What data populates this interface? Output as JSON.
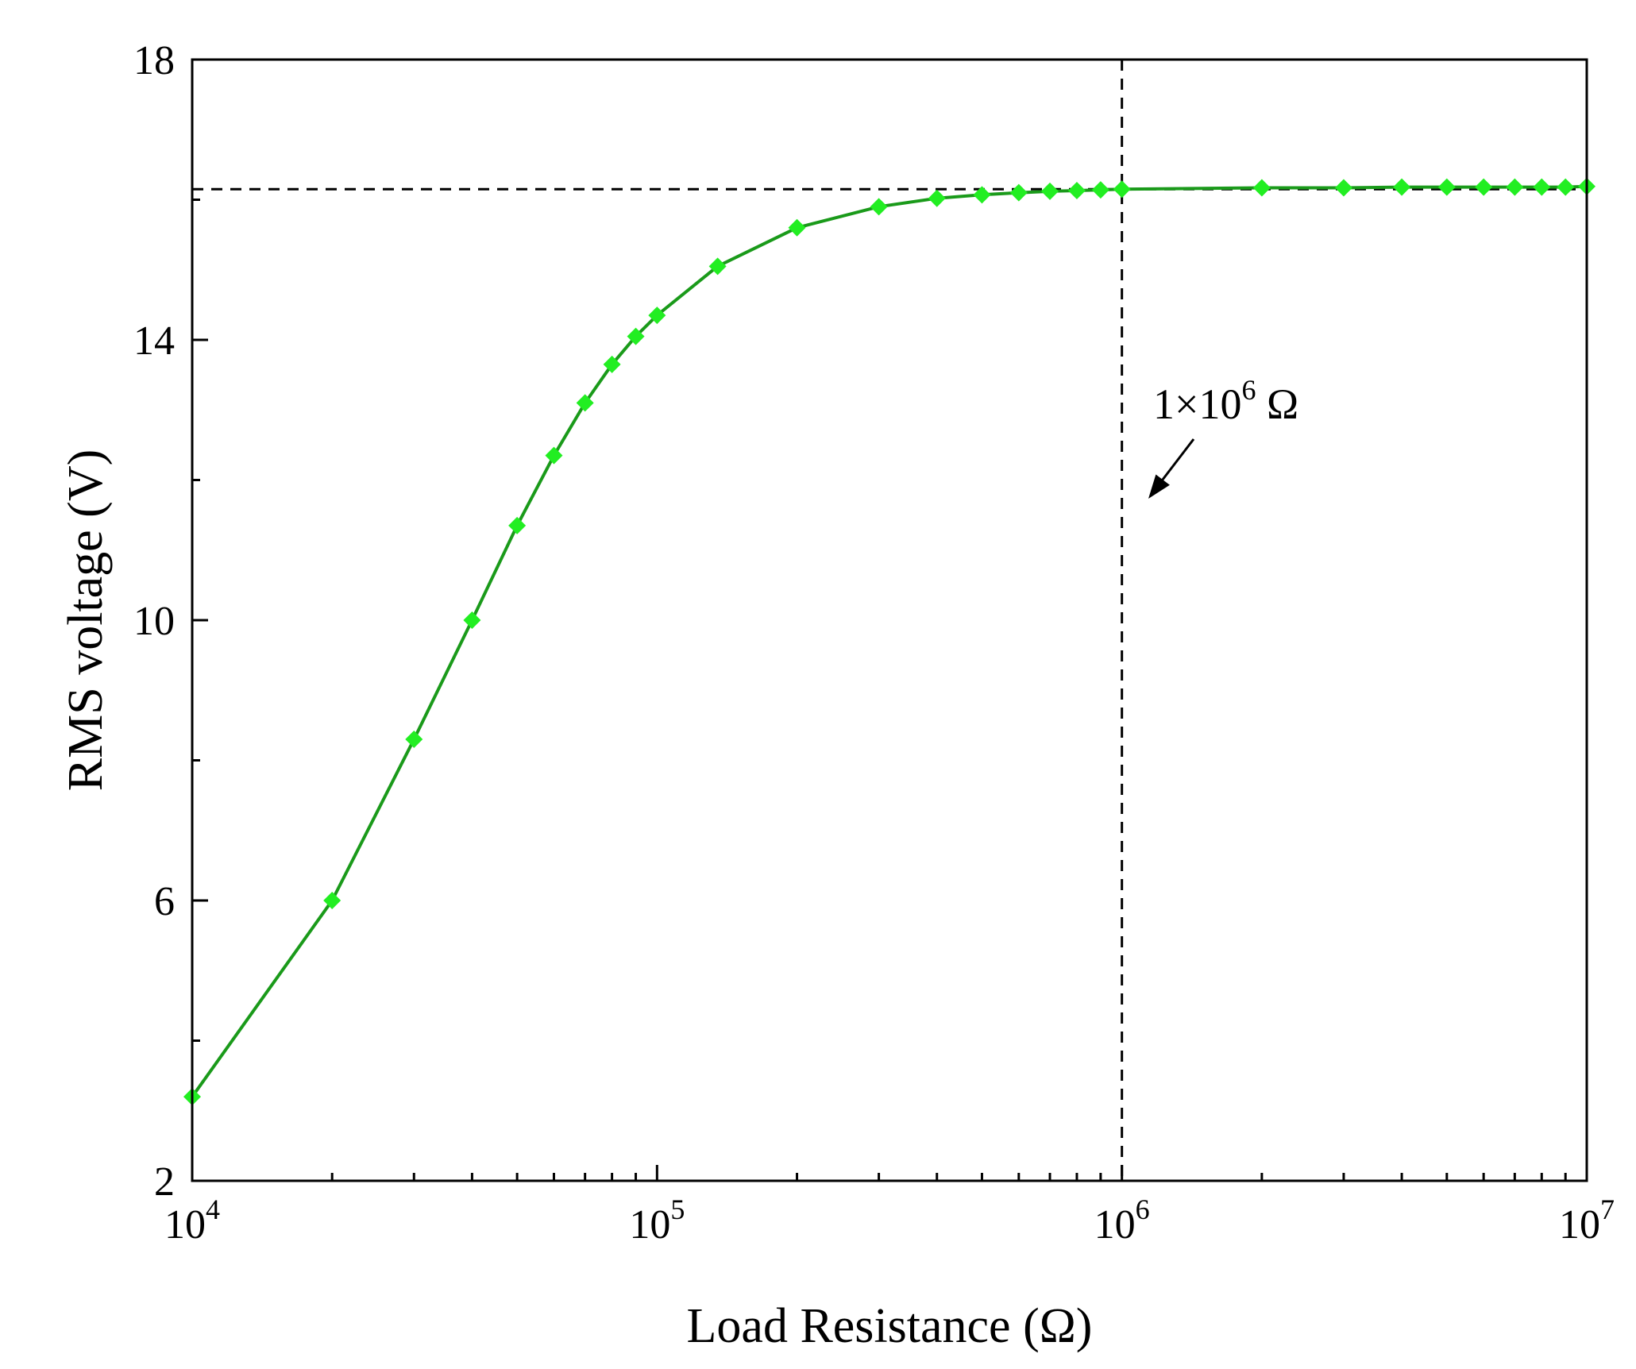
{
  "chart_data": {
    "type": "line",
    "xlabel": "Load Resistance (Ω)",
    "ylabel": "RMS voltage (V)",
    "xscale": "log",
    "xlim": [
      10000,
      10000000
    ],
    "ylim": [
      2,
      18
    ],
    "x_ticks": [
      {
        "value": 10000,
        "base": "10",
        "exp": "4"
      },
      {
        "value": 100000,
        "base": "10",
        "exp": "5"
      },
      {
        "value": 1000000,
        "base": "10",
        "exp": "6"
      },
      {
        "value": 10000000,
        "base": "10",
        "exp": "7"
      }
    ],
    "y_ticks": [
      {
        "value": 2,
        "label": "2"
      },
      {
        "value": 6,
        "label": "6"
      },
      {
        "value": 10,
        "label": "10"
      },
      {
        "value": 14,
        "label": "14"
      },
      {
        "value": 18,
        "label": "18"
      }
    ],
    "grid": false,
    "line_color": "#1a9a1a",
    "marker_color": "#22ee22",
    "marker": "diamond",
    "series": [
      {
        "x": [
          10000,
          20000,
          30000,
          40000,
          50000,
          60000,
          70000,
          80000,
          90000,
          100000,
          135000,
          200000,
          300000,
          400000,
          500000,
          600000,
          700000,
          800000,
          900000,
          1000000,
          2000000,
          3000000,
          4000000,
          5000000,
          6000000,
          7000000,
          8000000,
          9000000,
          10000000
        ],
        "y": [
          3.2,
          6.0,
          8.3,
          10.0,
          11.35,
          12.35,
          13.1,
          13.65,
          14.05,
          14.35,
          15.05,
          15.6,
          15.9,
          16.02,
          16.07,
          16.1,
          16.12,
          16.13,
          16.14,
          16.15,
          16.17,
          16.17,
          16.18,
          16.18,
          16.18,
          16.18,
          16.18,
          16.18,
          16.19
        ]
      }
    ],
    "reference_lines": {
      "horizontal_y": 16.15,
      "vertical_x": 1000000
    },
    "annotation": {
      "prefix": "1×10",
      "exp": "6",
      "suffix": " Ω"
    }
  }
}
